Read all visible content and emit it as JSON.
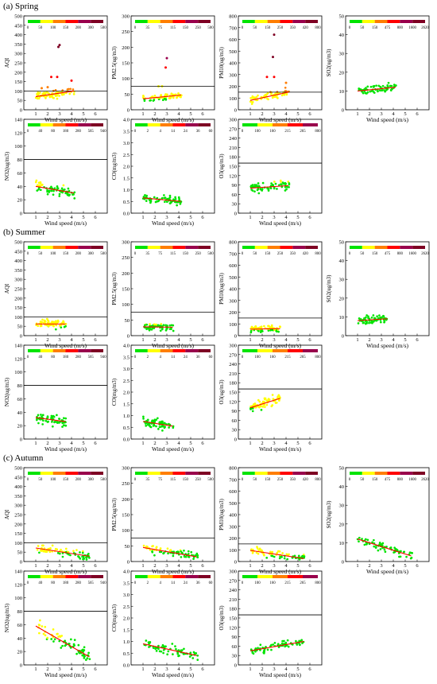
{
  "figure": {
    "sections": [
      {
        "label": "(a) Spring"
      },
      {
        "label": "(b) Summer"
      },
      {
        "label": "(c) Autumn"
      }
    ]
  },
  "colors": {
    "legend_scale": [
      "#00e400",
      "#ffff00",
      "#ff7e00",
      "#ff0000",
      "#99004c",
      "#7e0023",
      "#000000"
    ],
    "fit_line": "#ff0000",
    "threshold_line": "#000000"
  },
  "chart_data": [
    {
      "id": "spring-aqi",
      "type": "scatter",
      "section": "(a) Spring",
      "xlabel": "Wind speed (m/s)",
      "ylabel": "AQI",
      "xlim": [
        0,
        7
      ],
      "ylim": [
        0,
        500
      ],
      "xticks": [
        1,
        2,
        3,
        4,
        5,
        6
      ],
      "yticks": [
        0,
        50,
        100,
        150,
        200,
        250,
        300,
        350,
        400,
        450,
        500
      ],
      "threshold": 100,
      "fit": {
        "x": [
          1,
          4.2
        ],
        "y": [
          70,
          100
        ]
      },
      "legend_ticks": [
        "0",
        "50",
        "100",
        "150",
        "200",
        "300",
        "500"
      ],
      "points": [
        [
          2.9,
          335
        ],
        [
          3.0,
          345
        ],
        [
          2.3,
          175
        ],
        [
          2.8,
          175
        ],
        [
          4.0,
          155
        ],
        [
          1.5,
          115
        ],
        [
          2.0,
          120
        ]
      ]
    },
    {
      "id": "spring-pm25",
      "type": "scatter",
      "section": "(a) Spring",
      "xlabel": "Wind speed (m/s)",
      "ylabel": "PM2.5(ug/m3)",
      "xlim": [
        0,
        7
      ],
      "ylim": [
        0,
        300
      ],
      "xticks": [
        1,
        2,
        3,
        4,
        5,
        6
      ],
      "yticks": [
        0,
        50,
        100,
        150,
        200,
        250,
        300
      ],
      "threshold": 75,
      "fit": {
        "x": [
          1,
          4.2
        ],
        "y": [
          35,
          47
        ]
      },
      "legend_ticks": [
        "0",
        "35",
        "75",
        "115",
        "150",
        "250",
        "500"
      ],
      "points": [
        [
          3.0,
          165
        ],
        [
          2.9,
          135
        ],
        [
          2.3,
          75
        ],
        [
          2.6,
          75
        ]
      ]
    },
    {
      "id": "spring-pm10",
      "type": "scatter",
      "section": "(a) Spring",
      "xlabel": "Wind speed (m/s)",
      "ylabel": "PM10(ug/m3)",
      "xlim": [
        0,
        7
      ],
      "ylim": [
        0,
        800
      ],
      "xticks": [
        1,
        2,
        3,
        4,
        5,
        6
      ],
      "yticks": [
        0,
        100,
        200,
        300,
        400,
        500,
        600,
        700,
        800
      ],
      "threshold": 150,
      "fit": {
        "x": [
          1,
          4.2
        ],
        "y": [
          80,
          150
        ]
      },
      "legend_ticks": [
        "0",
        "50",
        "150",
        "250",
        "350",
        "420",
        "800"
      ],
      "points": [
        [
          3.0,
          640
        ],
        [
          2.9,
          450
        ],
        [
          3.0,
          280
        ],
        [
          2.4,
          280
        ],
        [
          4.0,
          230
        ]
      ]
    },
    {
      "id": "spring-so2",
      "type": "scatter",
      "section": "(a) Spring",
      "xlabel": "Wind speed (m/s)",
      "ylabel": "SO2(ug/m3)",
      "xlim": [
        0,
        7
      ],
      "ylim": [
        0,
        50
      ],
      "xticks": [
        1,
        2,
        3,
        4,
        5,
        6
      ],
      "yticks": [
        0,
        10,
        20,
        30,
        40,
        50
      ],
      "threshold": null,
      "fit": {
        "x": [
          1,
          4.2
        ],
        "y": [
          10,
          12
        ]
      },
      "legend_ticks": [
        "0",
        "50",
        "150",
        "475",
        "800",
        "1600",
        "2620"
      ],
      "points": []
    },
    {
      "id": "spring-no2",
      "type": "scatter",
      "section": "(a) Spring",
      "xlabel": "Wind speed (m/s)",
      "ylabel": "NO2(ug/m3)",
      "xlim": [
        0,
        7
      ],
      "ylim": [
        0,
        140
      ],
      "xticks": [
        1,
        2,
        3,
        4,
        5,
        6
      ],
      "yticks": [
        0,
        20,
        40,
        60,
        80,
        100,
        120,
        140
      ],
      "threshold": 80,
      "fit": {
        "x": [
          1,
          4.2
        ],
        "y": [
          40,
          30
        ]
      },
      "legend_ticks": [
        "0",
        "40",
        "80",
        "180",
        "280",
        "565",
        "940"
      ],
      "points": []
    },
    {
      "id": "spring-co",
      "type": "scatter",
      "section": "(a) Spring",
      "xlabel": "Wind speed (m/s)",
      "ylabel": "CO(mg/m3)",
      "xlim": [
        0,
        7
      ],
      "ylim": [
        0,
        4.0
      ],
      "xticks": [
        1,
        2,
        3,
        4,
        5,
        6
      ],
      "yticks": [
        0,
        0.5,
        1.0,
        1.5,
        2.0,
        2.5,
        3.0,
        3.5,
        4.0
      ],
      "threshold": null,
      "fit": {
        "x": [
          1,
          4.2
        ],
        "y": [
          0.65,
          0.5
        ]
      },
      "legend_ticks": [
        "0",
        "2",
        "4",
        "14",
        "24",
        "36",
        "60"
      ],
      "points": []
    },
    {
      "id": "spring-o3",
      "type": "scatter",
      "section": "(a) Spring",
      "xlabel": "Wind speed (m/s)",
      "ylabel": "O3(ug/m3)",
      "xlim": [
        0,
        7
      ],
      "ylim": [
        0,
        300
      ],
      "xticks": [
        1,
        2,
        3,
        4,
        5,
        6
      ],
      "yticks": [
        0,
        30,
        60,
        90,
        120,
        150,
        180,
        210,
        240,
        270,
        300
      ],
      "threshold": 160,
      "fit": {
        "x": [
          1,
          4.2
        ],
        "y": [
          80,
          88
        ]
      },
      "legend_ticks": [
        "0",
        "100",
        "160",
        "215",
        "265",
        "800"
      ],
      "points": []
    },
    {
      "id": "summer-aqi",
      "type": "scatter",
      "section": "(b) Summer",
      "xlabel": "Wind speed (m/s)",
      "ylabel": "AQI",
      "xlim": [
        0,
        7
      ],
      "ylim": [
        0,
        500
      ],
      "xticks": [
        1,
        2,
        3,
        4,
        5,
        6
      ],
      "yticks": [
        0,
        50,
        100,
        150,
        200,
        250,
        300,
        350,
        400,
        450,
        500
      ],
      "threshold": 100,
      "fit": {
        "x": [
          1,
          3.5
        ],
        "y": [
          62,
          62
        ]
      },
      "legend_ticks": [
        "0",
        "50",
        "100",
        "150",
        "200",
        "300",
        "500"
      ],
      "points": []
    },
    {
      "id": "summer-pm25",
      "type": "scatter",
      "section": "(b) Summer",
      "xlabel": "Wind speed (m/s)",
      "ylabel": "PM2.5(ug/m3)",
      "xlim": [
        0,
        7
      ],
      "ylim": [
        0,
        300
      ],
      "xticks": [
        1,
        2,
        3,
        4,
        5,
        6
      ],
      "yticks": [
        0,
        50,
        100,
        150,
        200,
        250,
        300
      ],
      "threshold": 75,
      "fit": {
        "x": [
          1,
          3.5
        ],
        "y": [
          28,
          27
        ]
      },
      "legend_ticks": [
        "0",
        "35",
        "75",
        "115",
        "150",
        "250",
        "500"
      ],
      "points": []
    },
    {
      "id": "summer-pm10",
      "type": "scatter",
      "section": "(b) Summer",
      "xlabel": "Wind speed (m/s)",
      "ylabel": "PM10(ug/m3)",
      "xlim": [
        0,
        7
      ],
      "ylim": [
        0,
        800
      ],
      "xticks": [
        1,
        2,
        3,
        4,
        5,
        6
      ],
      "yticks": [
        0,
        100,
        200,
        300,
        400,
        500,
        600,
        700,
        800
      ],
      "threshold": 150,
      "fit": {
        "x": [
          1,
          3.5
        ],
        "y": [
          55,
          60
        ]
      },
      "legend_ticks": [
        "0",
        "50",
        "150",
        "250",
        "350",
        "420",
        "800"
      ],
      "points": []
    },
    {
      "id": "summer-so2",
      "type": "scatter",
      "section": "(b) Summer",
      "xlabel": "Wind speed (m/s)",
      "ylabel": "SO2(ug/m3)",
      "xlim": [
        0,
        7
      ],
      "ylim": [
        0,
        50
      ],
      "xticks": [
        1,
        2,
        3,
        4,
        5,
        6
      ],
      "yticks": [
        0,
        10,
        20,
        30,
        40,
        50
      ],
      "threshold": null,
      "fit": {
        "x": [
          1,
          3.5
        ],
        "y": [
          8,
          9
        ]
      },
      "legend_ticks": [
        "0",
        "50",
        "150",
        "475",
        "800",
        "1600",
        "2620"
      ],
      "points": []
    },
    {
      "id": "summer-no2",
      "type": "scatter",
      "section": "(b) Summer",
      "xlabel": "Wind speed (m/s)",
      "ylabel": "NO2(ug/m3)",
      "xlim": [
        0,
        7
      ],
      "ylim": [
        0,
        140
      ],
      "xticks": [
        1,
        2,
        3,
        4,
        5,
        6
      ],
      "yticks": [
        0,
        20,
        40,
        60,
        80,
        100,
        120,
        140
      ],
      "threshold": 80,
      "fit": {
        "x": [
          1,
          3.5
        ],
        "y": [
          32,
          26
        ]
      },
      "legend_ticks": [
        "0",
        "40",
        "80",
        "180",
        "280",
        "565",
        "940"
      ],
      "points": []
    },
    {
      "id": "summer-co",
      "type": "scatter",
      "section": "(b) Summer",
      "xlabel": "Wind speed (m/s)",
      "ylabel": "CO(mg/m3)",
      "xlim": [
        0,
        7
      ],
      "ylim": [
        0,
        4.0
      ],
      "xticks": [
        1,
        2,
        3,
        4,
        5,
        6
      ],
      "yticks": [
        0,
        0.5,
        1.0,
        1.5,
        2.0,
        2.5,
        3.0,
        3.5,
        4.0
      ],
      "threshold": null,
      "fit": {
        "x": [
          1,
          3.5
        ],
        "y": [
          0.75,
          0.55
        ]
      },
      "legend_ticks": [
        "0",
        "2",
        "4",
        "14",
        "24",
        "36",
        "60"
      ],
      "points": []
    },
    {
      "id": "summer-o3",
      "type": "scatter",
      "section": "(b) Summer",
      "xlabel": "Wind speed (m/s)",
      "ylabel": "O3(ug/m3)",
      "xlim": [
        0,
        7
      ],
      "ylim": [
        0,
        300
      ],
      "xticks": [
        1,
        2,
        3,
        4,
        5,
        6
      ],
      "yticks": [
        0,
        30,
        60,
        90,
        120,
        150,
        180,
        210,
        240,
        270,
        300
      ],
      "threshold": 160,
      "fit": {
        "x": [
          1,
          3.5
        ],
        "y": [
          100,
          130
        ]
      },
      "legend_ticks": [
        "0",
        "100",
        "160",
        "215",
        "265",
        "800"
      ],
      "points": []
    },
    {
      "id": "autumn-aqi",
      "type": "scatter",
      "section": "(c) Autumn",
      "xlabel": "Wind speed (m/s)",
      "ylabel": "AQI",
      "xlim": [
        0,
        7
      ],
      "ylim": [
        0,
        500
      ],
      "xticks": [
        1,
        2,
        3,
        4,
        5,
        6
      ],
      "yticks": [
        0,
        50,
        100,
        150,
        200,
        250,
        300,
        350,
        400,
        450,
        500
      ],
      "threshold": 100,
      "fit": {
        "x": [
          1,
          5.5
        ],
        "y": [
          72,
          28
        ]
      },
      "legend_ticks": [
        "0",
        "50",
        "100",
        "150",
        "200",
        "300",
        "500"
      ],
      "points": []
    },
    {
      "id": "autumn-pm25",
      "type": "scatter",
      "section": "(c) Autumn",
      "xlabel": "Wind speed (m/s)",
      "ylabel": "PM2.5(ug/m3)",
      "xlim": [
        0,
        7
      ],
      "ylim": [
        0,
        300
      ],
      "xticks": [
        1,
        2,
        3,
        4,
        5,
        6
      ],
      "yticks": [
        0,
        50,
        100,
        150,
        200,
        250,
        300
      ],
      "threshold": 75,
      "fit": {
        "x": [
          1,
          5.5
        ],
        "y": [
          45,
          15
        ]
      },
      "legend_ticks": [
        "0",
        "35",
        "75",
        "115",
        "150",
        "250",
        "500"
      ],
      "points": []
    },
    {
      "id": "autumn-pm10",
      "type": "scatter",
      "section": "(c) Autumn",
      "xlabel": "Wind speed (m/s)",
      "ylabel": "PM10(ug/m3)",
      "xlim": [
        0,
        7
      ],
      "ylim": [
        0,
        800
      ],
      "xticks": [
        1,
        2,
        3,
        4,
        5,
        6
      ],
      "yticks": [
        0,
        100,
        200,
        300,
        400,
        500,
        600,
        700,
        800
      ],
      "threshold": 150,
      "fit": {
        "x": [
          1,
          5.5
        ],
        "y": [
          95,
          25
        ]
      },
      "legend_ticks": [
        "0",
        "50",
        "150",
        "250",
        "350",
        "420",
        "800"
      ],
      "points": []
    },
    {
      "id": "autumn-so2",
      "type": "scatter",
      "section": "(c) Autumn",
      "xlabel": "Wind speed (m/s)",
      "ylabel": "SO2(ug/m3)",
      "xlim": [
        0,
        7
      ],
      "ylim": [
        0,
        50
      ],
      "xticks": [
        1,
        2,
        3,
        4,
        5,
        6
      ],
      "yticks": [
        0,
        10,
        20,
        30,
        40,
        50
      ],
      "threshold": null,
      "fit": {
        "x": [
          1,
          5.5
        ],
        "y": [
          12,
          3
        ]
      },
      "legend_ticks": [
        "0",
        "50",
        "150",
        "475",
        "800",
        "1600",
        "2620"
      ],
      "points": []
    },
    {
      "id": "autumn-no2",
      "type": "scatter",
      "section": "(c) Autumn",
      "xlabel": "Wind speed (m/s)",
      "ylabel": "NO2(ug/m3)",
      "xlim": [
        0,
        7
      ],
      "ylim": [
        0,
        140
      ],
      "xticks": [
        1,
        2,
        3,
        4,
        5,
        6
      ],
      "yticks": [
        0,
        20,
        40,
        60,
        80,
        100,
        120,
        140
      ],
      "threshold": 80,
      "fit": {
        "x": [
          1,
          5.5
        ],
        "y": [
          58,
          12
        ]
      },
      "legend_ticks": [
        "0",
        "40",
        "80",
        "180",
        "280",
        "565",
        "940"
      ],
      "points": []
    },
    {
      "id": "autumn-co",
      "type": "scatter",
      "section": "(c) Autumn",
      "xlabel": "Wind speed (m/s)",
      "ylabel": "CO(mg/m3)",
      "xlim": [
        0,
        7
      ],
      "ylim": [
        0,
        4.0
      ],
      "xticks": [
        1,
        2,
        3,
        4,
        5,
        6
      ],
      "yticks": [
        0,
        0.5,
        1.0,
        1.5,
        2.0,
        2.5,
        3.0,
        3.5,
        4.0
      ],
      "threshold": null,
      "fit": {
        "x": [
          1,
          5.5
        ],
        "y": [
          0.9,
          0.4
        ]
      },
      "legend_ticks": [
        "0",
        "2",
        "4",
        "14",
        "24",
        "36",
        "60"
      ],
      "points": []
    },
    {
      "id": "autumn-o3",
      "type": "scatter",
      "section": "(c) Autumn",
      "xlabel": "Wind speed (m/s)",
      "ylabel": "O3(ug/m3)",
      "xlim": [
        0,
        7
      ],
      "ylim": [
        0,
        300
      ],
      "xticks": [
        1,
        2,
        3,
        4,
        5,
        6
      ],
      "yticks": [
        0,
        30,
        60,
        90,
        120,
        150,
        180,
        210,
        240,
        270,
        300
      ],
      "threshold": 160,
      "fit": {
        "x": [
          1,
          5.5
        ],
        "y": [
          45,
          75
        ]
      },
      "legend_ticks": [
        "0",
        "100",
        "160",
        "215",
        "265",
        "800"
      ],
      "points": []
    }
  ]
}
